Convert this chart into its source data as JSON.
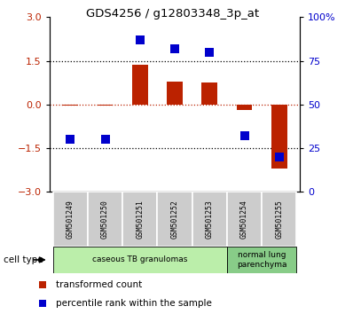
{
  "title": "GDS4256 / g12803348_3p_at",
  "samples": [
    "GSM501249",
    "GSM501250",
    "GSM501251",
    "GSM501252",
    "GSM501253",
    "GSM501254",
    "GSM501255"
  ],
  "transformed_count": [
    -0.05,
    -0.05,
    1.35,
    0.8,
    0.75,
    -0.18,
    -2.2
  ],
  "percentile_rank": [
    30,
    30,
    87,
    82,
    80,
    32,
    20
  ],
  "ylim_left": [
    -3,
    3
  ],
  "ylim_right": [
    0,
    100
  ],
  "yticks_left": [
    -3,
    -1.5,
    0,
    1.5,
    3
  ],
  "yticks_right": [
    0,
    25,
    50,
    75,
    100
  ],
  "ytick_labels_right": [
    "0",
    "25",
    "50",
    "75",
    "100%"
  ],
  "red_color": "#bb2200",
  "blue_color": "#0000cc",
  "bar_width": 0.45,
  "dot_size": 55,
  "dotted_lines": [
    -1.5,
    1.5
  ],
  "group_caseous": {
    "start": 0,
    "end": 4,
    "label": "caseous TB granulomas",
    "color": "#bbeeaa"
  },
  "group_normal": {
    "start": 5,
    "end": 6,
    "label": "normal lung\nparenchyma",
    "color": "#88cc88"
  },
  "legend_red": "transformed count",
  "legend_blue": "percentile rank within the sample",
  "cell_type_label": "cell type",
  "sample_box_color": "#cccccc",
  "sample_box_edge": "#ffffff",
  "plot_bg": "#ffffff"
}
